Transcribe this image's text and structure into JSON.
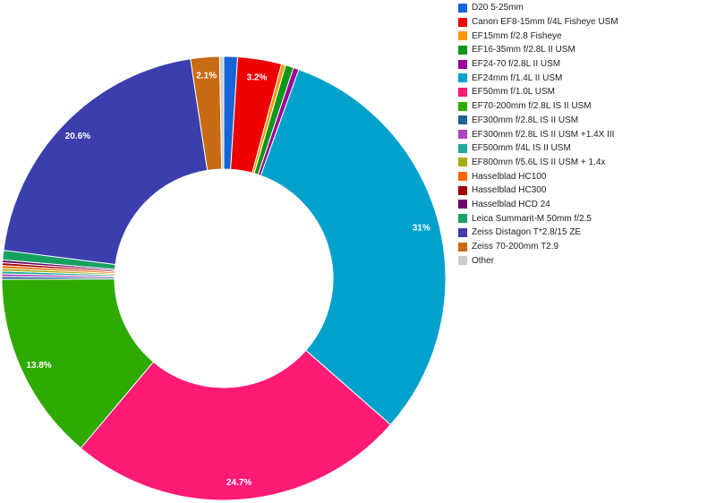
{
  "chart_data": {
    "type": "pie",
    "donut": true,
    "slices": [
      {
        "label": "D20 5-25mm",
        "value": 1.0,
        "color": "#1565d8"
      },
      {
        "label": "Canon EF8-15mm f/4L Fisheye USM",
        "value": 3.2,
        "color": "#ee0000",
        "data_label": "3.2%"
      },
      {
        "label": "EF15mm f/2.8 Fisheye",
        "value": 0.3,
        "color": "#ff9900"
      },
      {
        "label": "EF16-35mm f/2.8L II USM",
        "value": 0.6,
        "color": "#109618"
      },
      {
        "label": "EF24-70 f/2.8L II USM",
        "value": 0.4,
        "color": "#990099"
      },
      {
        "label": "EF24mm f/1.4L II USM",
        "value": 31.0,
        "color": "#00a2cc",
        "data_label": "31%"
      },
      {
        "label": "EF50mm f/1.0L USM",
        "value": 24.7,
        "color": "#ff1a75",
        "data_label": "24.7%"
      },
      {
        "label": "EF70-200mm f/2.8L IS II USM",
        "value": 13.8,
        "color": "#2eaa00",
        "data_label": "13.8%"
      },
      {
        "label": "EF300mm f/2.8L IS II USM",
        "value": 0.2,
        "color": "#1f6296"
      },
      {
        "label": "EF300mm f/2.8L IS II USM +1.4X III",
        "value": 0.2,
        "color": "#ab47bc"
      },
      {
        "label": "EF500mm f/4L IS II USM",
        "value": 0.2,
        "color": "#22aa99"
      },
      {
        "label": "EF800mm f/5.6L IS II USM + 1.4x",
        "value": 0.2,
        "color": "#aaaa11"
      },
      {
        "label": "Hasselblad HC100",
        "value": 0.2,
        "color": "#ff6600"
      },
      {
        "label": "Hasselblad HC300",
        "value": 0.2,
        "color": "#a00000"
      },
      {
        "label": "Hasselblad HCD 24",
        "value": 0.2,
        "color": "#6a006a"
      },
      {
        "label": "Leica Summarit-M 50mm f/2.5",
        "value": 0.7,
        "color": "#17a160"
      },
      {
        "label": "Zeiss Distagon T*2.8/15 ZE",
        "value": 20.6,
        "color": "#3b3eac",
        "data_label": "20.6%"
      },
      {
        "label": "Zeiss 70-200mm T2.9",
        "value": 2.1,
        "color": "#c96b12",
        "data_label": "2.1%"
      },
      {
        "label": "Other",
        "value": 0.3,
        "color": "#cccccc"
      }
    ],
    "legend_position": "right"
  }
}
